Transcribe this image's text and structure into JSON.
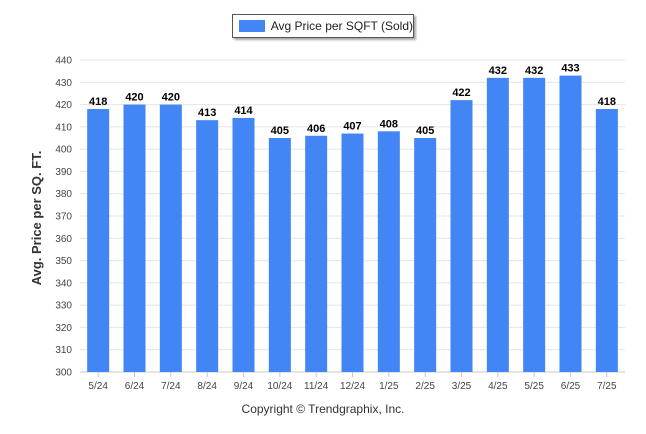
{
  "legend": {
    "label": "Avg Price per SQFT (Sold)",
    "color": "#4285f4"
  },
  "copyright": "Copyright © Trendgraphix, Inc.",
  "chart_data": {
    "type": "bar",
    "ylabel": "Avg. Price per SQ. FT.",
    "xlabel": "",
    "categories": [
      "5/24",
      "6/24",
      "7/24",
      "8/24",
      "9/24",
      "10/24",
      "11/24",
      "12/24",
      "1/25",
      "2/25",
      "3/25",
      "4/25",
      "5/25",
      "6/25",
      "7/25"
    ],
    "series": [
      {
        "name": "Avg Price per SQFT (Sold)",
        "values": [
          418,
          420,
          420,
          413,
          414,
          405,
          406,
          407,
          408,
          405,
          422,
          432,
          432,
          433,
          418
        ],
        "color": "#4285f4"
      }
    ],
    "ylim": [
      300,
      440
    ],
    "yticks": [
      300,
      310,
      320,
      330,
      340,
      350,
      360,
      370,
      380,
      390,
      400,
      410,
      420,
      430,
      440
    ],
    "data_labels": true,
    "grid": true,
    "legend_position": "top-center"
  }
}
